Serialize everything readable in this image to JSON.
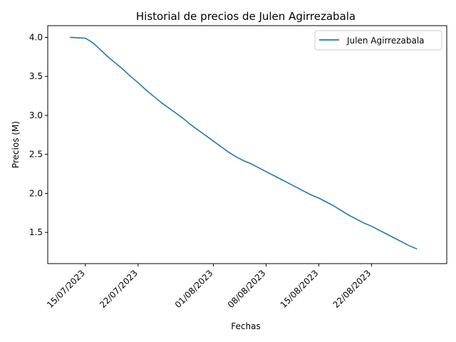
{
  "chart_data": {
    "type": "line",
    "title": "Historial de precios de Julen Agirrezabala",
    "xlabel": "Fechas",
    "ylabel": "Precios (M)",
    "x_ticks": [
      "15/07/2023",
      "22/07/2023",
      "01/08/2023",
      "08/08/2023",
      "15/08/2023",
      "22/08/2023"
    ],
    "y_ticks": [
      "1.5",
      "2.0",
      "2.5",
      "3.0",
      "3.5",
      "4.0"
    ],
    "xlim": [
      "2023-07-10",
      "2023-09-01"
    ],
    "ylim": [
      1.1,
      4.15
    ],
    "legend_position": "upper right",
    "grid": false,
    "series": [
      {
        "name": "Julen Agirrezabala",
        "color": "#1f77b4",
        "x": [
          "2023-07-13",
          "2023-07-15",
          "2023-07-16",
          "2023-07-17",
          "2023-07-18",
          "2023-07-19",
          "2023-07-20",
          "2023-07-21",
          "2023-07-22",
          "2023-07-23",
          "2023-07-24",
          "2023-07-25",
          "2023-07-26",
          "2023-07-27",
          "2023-07-28",
          "2023-07-29",
          "2023-07-30",
          "2023-07-31",
          "2023-08-01",
          "2023-08-02",
          "2023-08-03",
          "2023-08-04",
          "2023-08-05",
          "2023-08-06",
          "2023-08-07",
          "2023-08-08",
          "2023-08-09",
          "2023-08-10",
          "2023-08-11",
          "2023-08-12",
          "2023-08-13",
          "2023-08-14",
          "2023-08-15",
          "2023-08-16",
          "2023-08-17",
          "2023-08-18",
          "2023-08-19",
          "2023-08-20",
          "2023-08-21",
          "2023-08-22",
          "2023-08-23",
          "2023-08-24",
          "2023-08-25",
          "2023-08-26",
          "2023-08-27",
          "2023-08-28"
        ],
        "values": [
          4.0,
          3.99,
          3.93,
          3.84,
          3.75,
          3.67,
          3.59,
          3.5,
          3.42,
          3.33,
          3.25,
          3.17,
          3.1,
          3.03,
          2.96,
          2.88,
          2.81,
          2.74,
          2.67,
          2.6,
          2.53,
          2.47,
          2.42,
          2.38,
          2.33,
          2.28,
          2.23,
          2.18,
          2.13,
          2.08,
          2.03,
          1.98,
          1.94,
          1.89,
          1.84,
          1.78,
          1.72,
          1.67,
          1.62,
          1.58,
          1.53,
          1.48,
          1.43,
          1.38,
          1.33,
          1.29
        ]
      }
    ]
  }
}
